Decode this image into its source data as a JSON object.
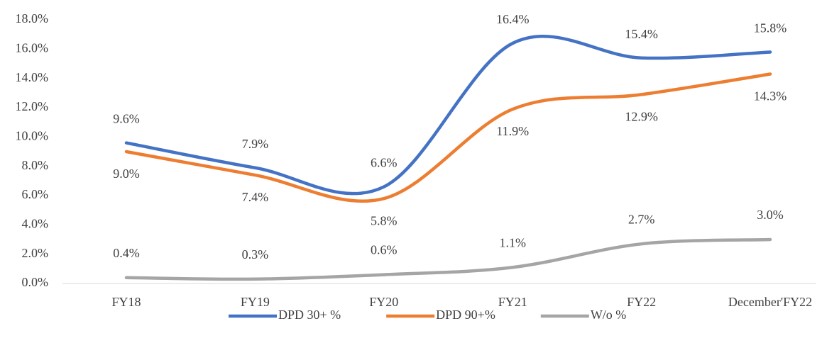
{
  "chart_data": {
    "type": "line",
    "categories": [
      "FY18",
      "FY19",
      "FY20",
      "FY21",
      "FY22",
      "December'FY22"
    ],
    "series": [
      {
        "name": "DPD 30+ %",
        "color": "#4472c4",
        "values": [
          9.6,
          7.9,
          6.6,
          16.4,
          15.4,
          15.8
        ],
        "value_labels": [
          "9.6%",
          "7.9%",
          "6.6%",
          "16.4%",
          "15.4%",
          "15.8%"
        ]
      },
      {
        "name": "DPD 90+%",
        "color": "#ed7d31",
        "values": [
          9.0,
          7.4,
          5.8,
          11.9,
          12.9,
          14.3
        ],
        "value_labels": [
          "9.0%",
          "7.4%",
          "5.8%",
          "11.9%",
          "12.9%",
          "14.3%"
        ]
      },
      {
        "name": "W/o %",
        "color": "#a5a5a5",
        "values": [
          0.4,
          0.3,
          0.6,
          1.1,
          2.7,
          3.0
        ],
        "value_labels": [
          "0.4%",
          "0.3%",
          "0.6%",
          "1.1%",
          "2.7%",
          "3.0%"
        ]
      }
    ],
    "ylim": [
      0,
      18
    ],
    "yticks": [
      {
        "value": 0,
        "label": "0.0%"
      },
      {
        "value": 2,
        "label": "2.0%"
      },
      {
        "value": 4,
        "label": "4.0%"
      },
      {
        "value": 6,
        "label": "6.0%"
      },
      {
        "value": 8,
        "label": "8.0%"
      },
      {
        "value": 10,
        "label": "10.0%"
      },
      {
        "value": 12,
        "label": "12.0%"
      },
      {
        "value": 14,
        "label": "14.0%"
      },
      {
        "value": 16,
        "label": "16.0%"
      },
      {
        "value": 18,
        "label": "18.0%"
      }
    ],
    "legend": "bottom"
  }
}
